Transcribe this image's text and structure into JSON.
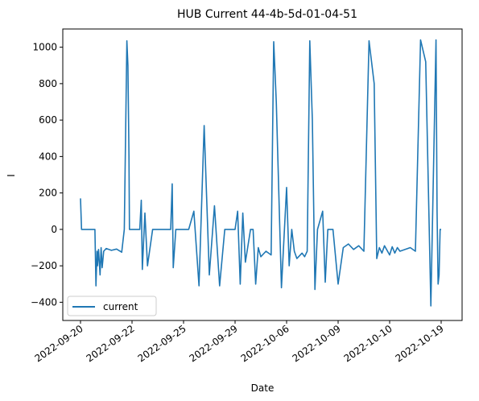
{
  "chart_data": {
    "type": "line",
    "title": "HUB Current 44-4b-5d-01-04-51",
    "xlabel": "Date",
    "ylabel": "I",
    "ylim": [
      -500,
      1100
    ],
    "yticks": [
      -400,
      -200,
      0,
      200,
      400,
      600,
      800,
      1000
    ],
    "xticks": [
      "2022-09-20",
      "2022-09-22",
      "2022-09-25",
      "2022-09-29",
      "2022-10-06",
      "2022-10-09",
      "2022-10-10",
      "2022-10-19"
    ],
    "legend": {
      "position": "lower-left",
      "entries": [
        "current"
      ]
    },
    "grid": false,
    "colors": {
      "series": "#1f77b4"
    },
    "series": [
      {
        "name": "current",
        "x": [
          0.0,
          0.02,
          0.25,
          0.28,
          0.3,
          0.32,
          0.33,
          0.35,
          0.38,
          0.4,
          0.42,
          0.45,
          0.5,
          0.6,
          0.7,
          0.8,
          0.85,
          0.9,
          0.92,
          0.94,
          0.95,
          0.97,
          1.0,
          1.1,
          1.15,
          1.18,
          1.2,
          1.25,
          1.3,
          1.4,
          1.45,
          1.5,
          1.6,
          1.7,
          1.75,
          1.78,
          1.8,
          1.85,
          1.9,
          2.0,
          2.05,
          2.1,
          2.2,
          2.3,
          2.4,
          2.5,
          2.6,
          2.7,
          2.8,
          2.9,
          3.0,
          3.05,
          3.1,
          3.15,
          3.2,
          3.3,
          3.35,
          3.4,
          3.45,
          3.5,
          3.6,
          3.7,
          3.75,
          3.8,
          3.9,
          4.0,
          4.05,
          4.1,
          4.15,
          4.2,
          4.3,
          4.35,
          4.4,
          4.45,
          4.5,
          4.55,
          4.6,
          4.7,
          4.75,
          4.8,
          4.85,
          4.9,
          5.0,
          5.1,
          5.2,
          5.3,
          5.4,
          5.5,
          5.6,
          5.7,
          5.75,
          5.8,
          5.85,
          5.9,
          6.0,
          6.05,
          6.1,
          6.15,
          6.2,
          6.3,
          6.4,
          6.5,
          6.6,
          6.7,
          6.8,
          6.9,
          6.92,
          6.94,
          6.96,
          6.98,
          7.0
        ],
        "values": [
          170,
          0,
          0,
          0,
          -310,
          -120,
          -200,
          -110,
          -250,
          -100,
          -210,
          -120,
          -105,
          -115,
          -108,
          -125,
          0,
          1035,
          900,
          400,
          0,
          0,
          0,
          0,
          0,
          160,
          -220,
          90,
          -200,
          0,
          0,
          0,
          0,
          0,
          0,
          250,
          -210,
          0,
          0,
          0,
          0,
          0,
          100,
          -310,
          570,
          -250,
          130,
          -310,
          0,
          0,
          0,
          100,
          -300,
          90,
          -180,
          0,
          0,
          -300,
          -100,
          -150,
          -120,
          -140,
          1030,
          700,
          -320,
          230,
          -200,
          0,
          -120,
          -160,
          -130,
          -150,
          -120,
          1035,
          600,
          -330,
          0,
          100,
          -290,
          0,
          0,
          0,
          -300,
          -100,
          -80,
          -110,
          -90,
          -120,
          1035,
          800,
          -160,
          -100,
          -130,
          -90,
          -140,
          -95,
          -130,
          -100,
          -120,
          -110,
          -100,
          -120,
          1040,
          920,
          -420,
          1040,
          100,
          -300,
          -250,
          0,
          0
        ]
      }
    ]
  }
}
